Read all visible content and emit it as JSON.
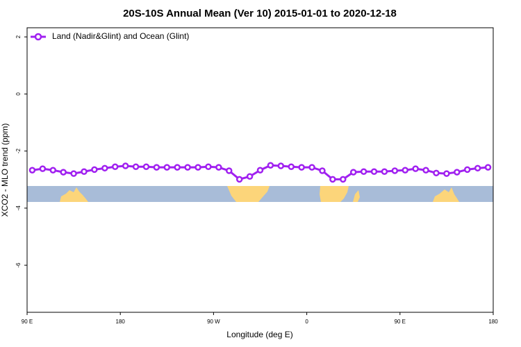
{
  "chart_data": {
    "type": "line",
    "title": "20S-10S Annual Mean (Ver 10)   2015-01-01 to 2020-12-18",
    "x_label": "Longitude (deg E)",
    "y_label": "XCO2 - MLO trend (ppm)",
    "x": [
      95,
      105,
      115,
      125,
      135,
      145,
      155,
      165,
      175,
      185,
      195,
      205,
      215,
      225,
      235,
      245,
      255,
      265,
      275,
      285,
      295,
      305,
      315,
      325,
      335,
      345,
      355,
      365,
      375,
      385,
      395,
      405,
      415,
      425,
      435,
      445,
      455,
      465,
      475,
      485,
      495,
      505,
      515,
      525,
      535
    ],
    "series": [
      {
        "name": "Land (Nadir&Glint) and Ocean (Glint)",
        "color": "#a020f0",
        "values": [
          -2.67,
          -2.62,
          -2.67,
          -2.74,
          -2.79,
          -2.72,
          -2.65,
          -2.6,
          -2.55,
          -2.52,
          -2.55,
          -2.55,
          -2.57,
          -2.57,
          -2.57,
          -2.57,
          -2.57,
          -2.55,
          -2.57,
          -2.69,
          -2.99,
          -2.89,
          -2.67,
          -2.5,
          -2.52,
          -2.55,
          -2.57,
          -2.57,
          -2.69,
          -2.99,
          -2.99,
          -2.74,
          -2.72,
          -2.72,
          -2.72,
          -2.69,
          -2.67,
          -2.62,
          -2.67,
          -2.77,
          -2.79,
          -2.74,
          -2.65,
          -2.6,
          -2.57
        ]
      }
    ],
    "xlim": [
      90,
      540
    ],
    "xticks": [
      {
        "value": 90,
        "label": "90 E"
      },
      180,
      {
        "value": 270,
        "label": "90 W"
      },
      {
        "value": 360,
        "label": "0"
      },
      {
        "value": 450,
        "label": "90 E"
      },
      {
        "value": 540,
        "label": "180"
      }
    ],
    "ylim": [
      -7.65,
      2.32
    ],
    "yticks": [
      2,
      0,
      -2,
      -4,
      -6
    ],
    "legend": "top-left"
  }
}
